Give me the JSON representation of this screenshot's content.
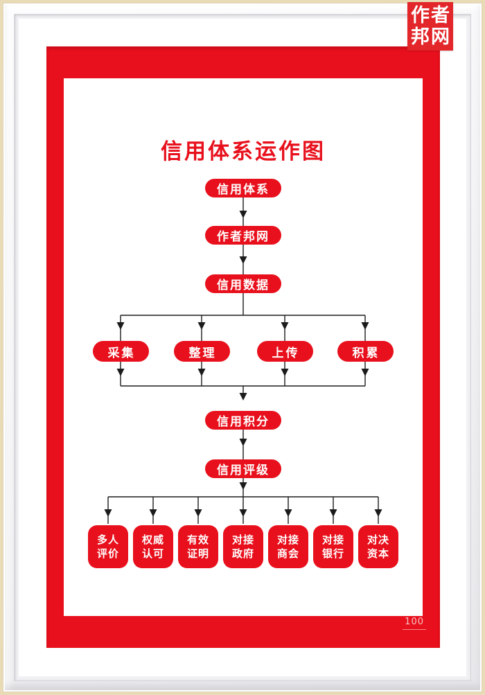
{
  "badge": {
    "text_lines": [
      "作者",
      "邦网"
    ]
  },
  "page": {
    "number": "100"
  },
  "colors": {
    "red": "#e8101c",
    "badge_red": "#e2262a",
    "line": "#1b1b1b",
    "text_on_red": "#ffffff",
    "page_number": "#f5c6c6",
    "frame_edge_tan": "#e9dbb6"
  },
  "flowchart": {
    "title": "信用体系运作图",
    "top_chain": [
      {
        "id": "credit-system",
        "label": "信用体系"
      },
      {
        "id": "zuozhebang",
        "label": "作者邦网"
      },
      {
        "id": "credit-data",
        "label": "信用数据"
      }
    ],
    "mid_row": [
      {
        "id": "collect",
        "label": "采集"
      },
      {
        "id": "organize",
        "label": "整理"
      },
      {
        "id": "upload",
        "label": "上传"
      },
      {
        "id": "accumulate",
        "label": "积累"
      }
    ],
    "bottom_chain": [
      {
        "id": "credit-points",
        "label": "信用积分"
      },
      {
        "id": "credit-rating",
        "label": "信用评级"
      }
    ],
    "bottom_row": [
      {
        "id": "multi-person-eval",
        "label": "多人\n评价"
      },
      {
        "id": "authority-approval",
        "label": "权威\n认可"
      },
      {
        "id": "valid-proof",
        "label": "有效\n证明"
      },
      {
        "id": "connect-government",
        "label": "对接\n政府"
      },
      {
        "id": "connect-chamber",
        "label": "对接\n商会"
      },
      {
        "id": "connect-bank",
        "label": "对接\n银行"
      },
      {
        "id": "duel-capital",
        "label": "对决\n资本"
      }
    ]
  }
}
